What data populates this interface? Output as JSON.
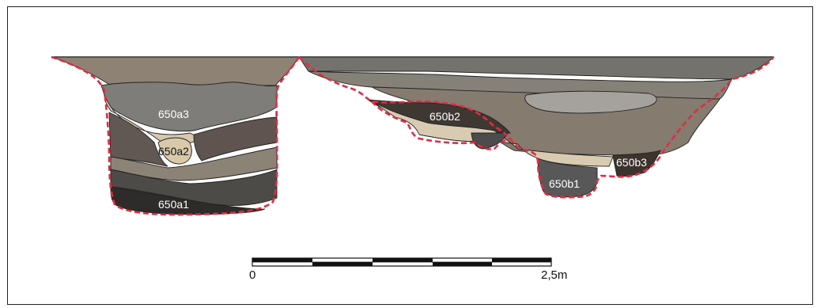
{
  "figure": {
    "units": {
      "a1": "650a1",
      "a2": "650a2",
      "a3": "650a3",
      "b1": "650b1",
      "b2": "650b2",
      "b3": "650b3"
    },
    "scale_bar": {
      "start_label": "0",
      "end_label": "2,5m"
    },
    "colors": {
      "boundary": "#e8293f",
      "fill_light": "#d8cbb2",
      "fill_mid": "#7f776d",
      "fill_dark": "#2c2b29"
    }
  }
}
